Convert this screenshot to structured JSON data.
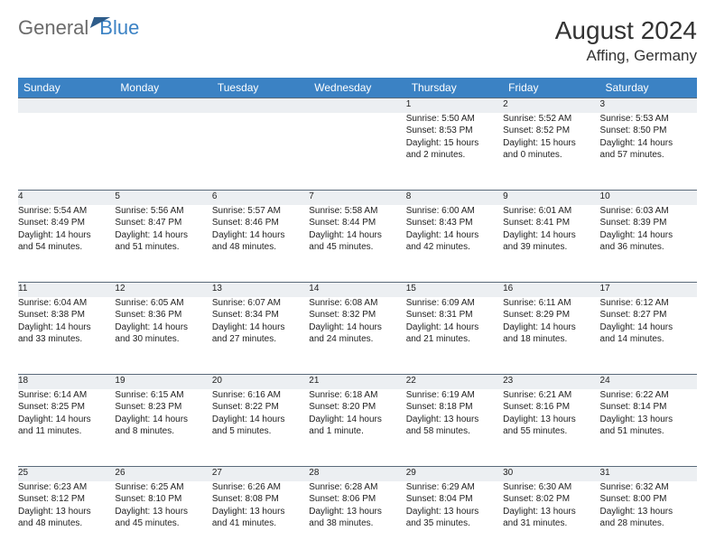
{
  "brand": {
    "part1": "General",
    "part2": "Blue"
  },
  "title": "August 2024",
  "location": "Affing, Germany",
  "weekdays": [
    "Sunday",
    "Monday",
    "Tuesday",
    "Wednesday",
    "Thursday",
    "Friday",
    "Saturday"
  ],
  "colors": {
    "header_bg": "#3b82c4",
    "daynum_bg": "#eceff2",
    "rule": "#5a6a7a",
    "text": "#222222",
    "title": "#333333",
    "logo_gray": "#6b6b6b"
  },
  "fonts": {
    "month_title_pt": 28,
    "location_pt": 17,
    "weekday_pt": 12,
    "daynum_pt": 11,
    "body_pt": 10
  },
  "rows": [
    {
      "nums": [
        "",
        "",
        "",
        "",
        "1",
        "2",
        "3"
      ],
      "cells": [
        {
          "sr": "",
          "ss": "",
          "dl1": "",
          "dl2": ""
        },
        {
          "sr": "",
          "ss": "",
          "dl1": "",
          "dl2": ""
        },
        {
          "sr": "",
          "ss": "",
          "dl1": "",
          "dl2": ""
        },
        {
          "sr": "",
          "ss": "",
          "dl1": "",
          "dl2": ""
        },
        {
          "sr": "Sunrise: 5:50 AM",
          "ss": "Sunset: 8:53 PM",
          "dl1": "Daylight: 15 hours",
          "dl2": "and 2 minutes."
        },
        {
          "sr": "Sunrise: 5:52 AM",
          "ss": "Sunset: 8:52 PM",
          "dl1": "Daylight: 15 hours",
          "dl2": "and 0 minutes."
        },
        {
          "sr": "Sunrise: 5:53 AM",
          "ss": "Sunset: 8:50 PM",
          "dl1": "Daylight: 14 hours",
          "dl2": "and 57 minutes."
        }
      ]
    },
    {
      "nums": [
        "4",
        "5",
        "6",
        "7",
        "8",
        "9",
        "10"
      ],
      "cells": [
        {
          "sr": "Sunrise: 5:54 AM",
          "ss": "Sunset: 8:49 PM",
          "dl1": "Daylight: 14 hours",
          "dl2": "and 54 minutes."
        },
        {
          "sr": "Sunrise: 5:56 AM",
          "ss": "Sunset: 8:47 PM",
          "dl1": "Daylight: 14 hours",
          "dl2": "and 51 minutes."
        },
        {
          "sr": "Sunrise: 5:57 AM",
          "ss": "Sunset: 8:46 PM",
          "dl1": "Daylight: 14 hours",
          "dl2": "and 48 minutes."
        },
        {
          "sr": "Sunrise: 5:58 AM",
          "ss": "Sunset: 8:44 PM",
          "dl1": "Daylight: 14 hours",
          "dl2": "and 45 minutes."
        },
        {
          "sr": "Sunrise: 6:00 AM",
          "ss": "Sunset: 8:43 PM",
          "dl1": "Daylight: 14 hours",
          "dl2": "and 42 minutes."
        },
        {
          "sr": "Sunrise: 6:01 AM",
          "ss": "Sunset: 8:41 PM",
          "dl1": "Daylight: 14 hours",
          "dl2": "and 39 minutes."
        },
        {
          "sr": "Sunrise: 6:03 AM",
          "ss": "Sunset: 8:39 PM",
          "dl1": "Daylight: 14 hours",
          "dl2": "and 36 minutes."
        }
      ]
    },
    {
      "nums": [
        "11",
        "12",
        "13",
        "14",
        "15",
        "16",
        "17"
      ],
      "cells": [
        {
          "sr": "Sunrise: 6:04 AM",
          "ss": "Sunset: 8:38 PM",
          "dl1": "Daylight: 14 hours",
          "dl2": "and 33 minutes."
        },
        {
          "sr": "Sunrise: 6:05 AM",
          "ss": "Sunset: 8:36 PM",
          "dl1": "Daylight: 14 hours",
          "dl2": "and 30 minutes."
        },
        {
          "sr": "Sunrise: 6:07 AM",
          "ss": "Sunset: 8:34 PM",
          "dl1": "Daylight: 14 hours",
          "dl2": "and 27 minutes."
        },
        {
          "sr": "Sunrise: 6:08 AM",
          "ss": "Sunset: 8:32 PM",
          "dl1": "Daylight: 14 hours",
          "dl2": "and 24 minutes."
        },
        {
          "sr": "Sunrise: 6:09 AM",
          "ss": "Sunset: 8:31 PM",
          "dl1": "Daylight: 14 hours",
          "dl2": "and 21 minutes."
        },
        {
          "sr": "Sunrise: 6:11 AM",
          "ss": "Sunset: 8:29 PM",
          "dl1": "Daylight: 14 hours",
          "dl2": "and 18 minutes."
        },
        {
          "sr": "Sunrise: 6:12 AM",
          "ss": "Sunset: 8:27 PM",
          "dl1": "Daylight: 14 hours",
          "dl2": "and 14 minutes."
        }
      ]
    },
    {
      "nums": [
        "18",
        "19",
        "20",
        "21",
        "22",
        "23",
        "24"
      ],
      "cells": [
        {
          "sr": "Sunrise: 6:14 AM",
          "ss": "Sunset: 8:25 PM",
          "dl1": "Daylight: 14 hours",
          "dl2": "and 11 minutes."
        },
        {
          "sr": "Sunrise: 6:15 AM",
          "ss": "Sunset: 8:23 PM",
          "dl1": "Daylight: 14 hours",
          "dl2": "and 8 minutes."
        },
        {
          "sr": "Sunrise: 6:16 AM",
          "ss": "Sunset: 8:22 PM",
          "dl1": "Daylight: 14 hours",
          "dl2": "and 5 minutes."
        },
        {
          "sr": "Sunrise: 6:18 AM",
          "ss": "Sunset: 8:20 PM",
          "dl1": "Daylight: 14 hours",
          "dl2": "and 1 minute."
        },
        {
          "sr": "Sunrise: 6:19 AM",
          "ss": "Sunset: 8:18 PM",
          "dl1": "Daylight: 13 hours",
          "dl2": "and 58 minutes."
        },
        {
          "sr": "Sunrise: 6:21 AM",
          "ss": "Sunset: 8:16 PM",
          "dl1": "Daylight: 13 hours",
          "dl2": "and 55 minutes."
        },
        {
          "sr": "Sunrise: 6:22 AM",
          "ss": "Sunset: 8:14 PM",
          "dl1": "Daylight: 13 hours",
          "dl2": "and 51 minutes."
        }
      ]
    },
    {
      "nums": [
        "25",
        "26",
        "27",
        "28",
        "29",
        "30",
        "31"
      ],
      "cells": [
        {
          "sr": "Sunrise: 6:23 AM",
          "ss": "Sunset: 8:12 PM",
          "dl1": "Daylight: 13 hours",
          "dl2": "and 48 minutes."
        },
        {
          "sr": "Sunrise: 6:25 AM",
          "ss": "Sunset: 8:10 PM",
          "dl1": "Daylight: 13 hours",
          "dl2": "and 45 minutes."
        },
        {
          "sr": "Sunrise: 6:26 AM",
          "ss": "Sunset: 8:08 PM",
          "dl1": "Daylight: 13 hours",
          "dl2": "and 41 minutes."
        },
        {
          "sr": "Sunrise: 6:28 AM",
          "ss": "Sunset: 8:06 PM",
          "dl1": "Daylight: 13 hours",
          "dl2": "and 38 minutes."
        },
        {
          "sr": "Sunrise: 6:29 AM",
          "ss": "Sunset: 8:04 PM",
          "dl1": "Daylight: 13 hours",
          "dl2": "and 35 minutes."
        },
        {
          "sr": "Sunrise: 6:30 AM",
          "ss": "Sunset: 8:02 PM",
          "dl1": "Daylight: 13 hours",
          "dl2": "and 31 minutes."
        },
        {
          "sr": "Sunrise: 6:32 AM",
          "ss": "Sunset: 8:00 PM",
          "dl1": "Daylight: 13 hours",
          "dl2": "and 28 minutes."
        }
      ]
    }
  ]
}
